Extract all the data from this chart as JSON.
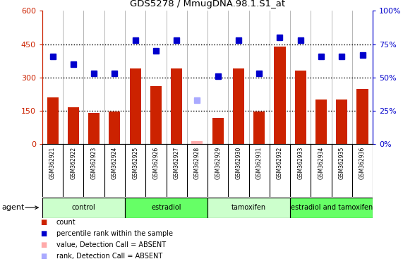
{
  "title": "GDS5278 / MmugDNA.98.1.S1_at",
  "samples": [
    "GSM362921",
    "GSM362922",
    "GSM362923",
    "GSM362924",
    "GSM362925",
    "GSM362926",
    "GSM362927",
    "GSM362928",
    "GSM362929",
    "GSM362930",
    "GSM362931",
    "GSM362932",
    "GSM362933",
    "GSM362934",
    "GSM362935",
    "GSM362936"
  ],
  "bar_values": [
    210,
    165,
    140,
    148,
    340,
    260,
    340,
    15,
    120,
    340,
    148,
    440,
    330,
    200,
    200,
    248
  ],
  "bar_absent": [
    false,
    false,
    false,
    false,
    false,
    false,
    false,
    true,
    false,
    false,
    false,
    false,
    false,
    false,
    false,
    false
  ],
  "rank_values": [
    66,
    60,
    53,
    53,
    78,
    70,
    78,
    33,
    51,
    78,
    53,
    80,
    78,
    66,
    66,
    67
  ],
  "rank_absent": [
    false,
    false,
    false,
    false,
    false,
    false,
    false,
    true,
    false,
    false,
    false,
    false,
    false,
    false,
    false,
    false
  ],
  "ylim_left": [
    0,
    600
  ],
  "ylim_right": [
    0,
    100
  ],
  "yticks_left": [
    0,
    150,
    300,
    450,
    600
  ],
  "yticks_right": [
    0,
    25,
    50,
    75,
    100
  ],
  "ytick_labels_left": [
    "0",
    "150",
    "300",
    "450",
    "600"
  ],
  "ytick_labels_right": [
    "0%",
    "25%",
    "50%",
    "75%",
    "100%"
  ],
  "groups": [
    {
      "label": "control",
      "start": 0,
      "end": 3,
      "color": "#ccffcc"
    },
    {
      "label": "estradiol",
      "start": 4,
      "end": 7,
      "color": "#66ff66"
    },
    {
      "label": "tamoxifen",
      "start": 8,
      "end": 11,
      "color": "#ccffcc"
    },
    {
      "label": "estradiol and tamoxifen",
      "start": 12,
      "end": 15,
      "color": "#66ff66"
    }
  ],
  "bar_color": "#cc2200",
  "bar_absent_color": "#ffaaaa",
  "rank_color": "#0000cc",
  "rank_absent_color": "#aaaaff",
  "hline_color": "#000000",
  "hlines": [
    150,
    300,
    450
  ],
  "bg_plot": "#ffffff",
  "bg_sample_row": "#cccccc",
  "agent_label": "agent",
  "legend_items": [
    {
      "color": "#cc2200",
      "label": "count"
    },
    {
      "color": "#0000cc",
      "label": "percentile rank within the sample"
    },
    {
      "color": "#ffaaaa",
      "label": "value, Detection Call = ABSENT"
    },
    {
      "color": "#aaaaff",
      "label": "rank, Detection Call = ABSENT"
    }
  ],
  "bar_width": 0.55,
  "rank_marker_size": 6,
  "left_ylabel_color": "#cc2200",
  "right_ylabel_color": "#0000cc"
}
